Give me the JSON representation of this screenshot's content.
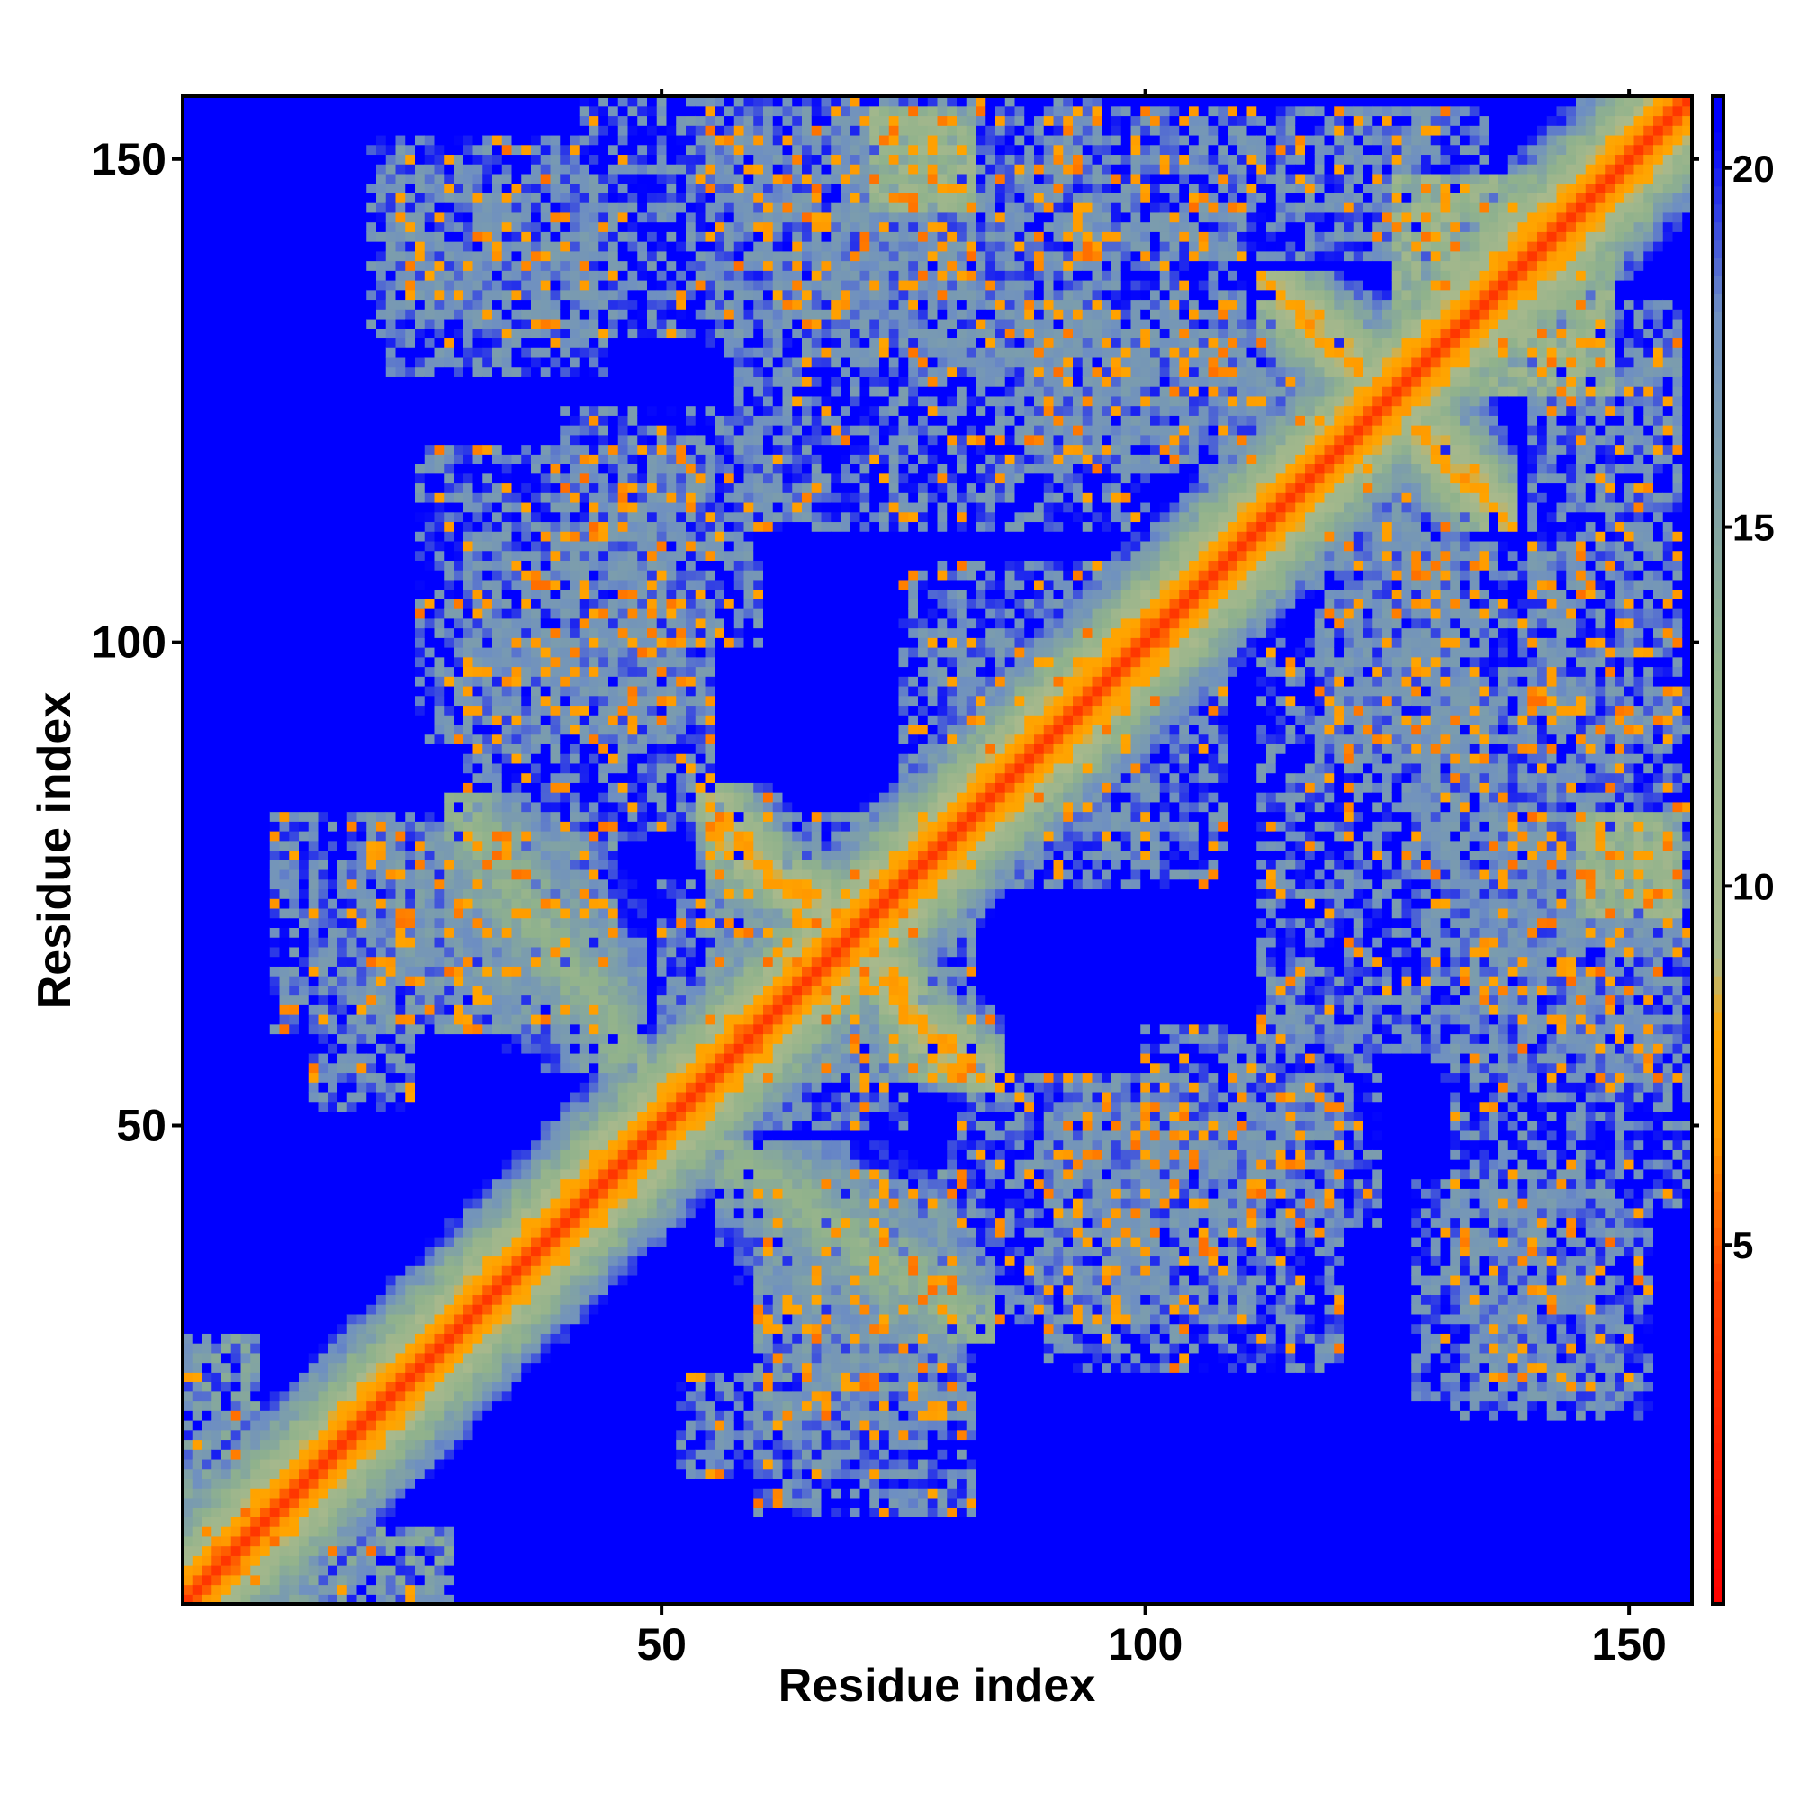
{
  "chart_data": {
    "type": "heatmap",
    "title": "",
    "xlabel": "Residue index",
    "ylabel": "Residue index",
    "xlim": [
      1,
      156
    ],
    "ylim": [
      1,
      156
    ],
    "xticks": [
      50,
      100,
      150
    ],
    "yticks": [
      50,
      100,
      150
    ],
    "symmetric": true,
    "diagonal_value": 3.8,
    "colorbar": {
      "range": [
        0,
        21
      ],
      "ticks": [
        5,
        10,
        15,
        20
      ],
      "stops": [
        {
          "value": 0,
          "color": "#ff0000"
        },
        {
          "value": 4.5,
          "color": "#ff4000"
        },
        {
          "value": 6.5,
          "color": "#ff9900"
        },
        {
          "value": 8.0,
          "color": "#ffa500"
        },
        {
          "value": 9.0,
          "color": "#a9b98c"
        },
        {
          "value": 13.0,
          "color": "#90b28c"
        },
        {
          "value": 18.0,
          "color": "#6e8fc2"
        },
        {
          "value": 20.5,
          "color": "#0000ff"
        },
        {
          "value": 21,
          "color": "#0000ff"
        }
      ]
    },
    "background_value": 21,
    "diagonal_band_width": 12,
    "contact_segments": [
      {
        "a": [
          1,
          8
        ],
        "b": [
          1,
          28
        ],
        "dist": 10
      },
      {
        "a": [
          28,
          48
        ],
        "b": [
          56,
          84
        ],
        "dist": 11,
        "dir": "anti"
      },
      {
        "a": [
          55,
          68
        ],
        "b": [
          72,
          80
        ],
        "dist": 6,
        "dir": "anti"
      },
      {
        "a": [
          20,
          45
        ],
        "b": [
          60,
          80
        ],
        "dist": 11
      },
      {
        "a": [
          50,
          72
        ],
        "b": [
          62,
          75
        ],
        "dist": 12
      },
      {
        "a": [
          55,
          82
        ],
        "b": [
          55,
          72
        ],
        "dist": 11
      },
      {
        "a": [
          75,
          85
        ],
        "b": [
          54,
          62
        ],
        "dist": 6,
        "dir": "anti"
      },
      {
        "a": [
          72,
          84
        ],
        "b": [
          56,
          64
        ],
        "dist": 11
      },
      {
        "a": [
          52,
          78
        ],
        "b": [
          14,
          24
        ],
        "dist": 12
      },
      {
        "a": [
          60,
          82
        ],
        "b": [
          20,
          36
        ],
        "dist": 12
      },
      {
        "a": [
          92,
          112
        ],
        "b": [
          30,
          52
        ],
        "dist": 12
      },
      {
        "a": [
          128,
          148
        ],
        "b": [
          22,
          45
        ],
        "dist": 12
      },
      {
        "a": [
          100,
          124
        ],
        "b": [
          40,
          60
        ],
        "dist": 12
      },
      {
        "a": [
          130,
          155
        ],
        "b": [
          55,
          82
        ],
        "dist": 12
      },
      {
        "a": [
          145,
          155
        ],
        "b": [
          72,
          80
        ],
        "dist": 6
      },
      {
        "a": [
          128,
          150
        ],
        "b": [
          80,
          110
        ],
        "dist": 12
      },
      {
        "a": [
          118,
          132
        ],
        "b": [
          88,
          112
        ],
        "dist": 12
      },
      {
        "a": [
          128,
          138
        ],
        "b": [
          112,
          122
        ],
        "dist": 6,
        "dir": "anti"
      },
      {
        "a": [
          114,
          125
        ],
        "b": [
          126,
          136
        ],
        "dist": 6,
        "dir": "anti"
      },
      {
        "a": [
          132,
          148
        ],
        "b": [
          126,
          140
        ],
        "dist": 6
      },
      {
        "a": [
          140,
          155
        ],
        "b": [
          118,
          135
        ],
        "dist": 12
      },
      {
        "a": [
          73,
          82
        ],
        "b": [
          145,
          155
        ],
        "dist": 6
      },
      {
        "a": [
          68,
          95
        ],
        "b": [
          130,
          156
        ],
        "dist": 12
      },
      {
        "a": [
          92,
          130
        ],
        "b": [
          140,
          155
        ],
        "dist": 12
      },
      {
        "a": [
          88,
          118
        ],
        "b": [
          120,
          135
        ],
        "dist": 12
      },
      {
        "a": [
          20,
          42
        ],
        "b": [
          132,
          152
        ],
        "dist": 12
      },
      {
        "a": [
          42,
          78
        ],
        "b": [
          132,
          156
        ],
        "dist": 12
      },
      {
        "a": [
          25,
          55
        ],
        "b": [
          90,
          120
        ],
        "dist": 12
      },
      {
        "a": [
          10,
          45
        ],
        "b": [
          60,
          82
        ],
        "dist": 12
      },
      {
        "a": [
          75,
          100
        ],
        "b": [
          80,
          108
        ],
        "dist": 12
      },
      {
        "a": [
          80,
          100
        ],
        "b": [
          30,
          55
        ],
        "dist": 12
      },
      {
        "a": [
          112,
          130
        ],
        "b": [
          58,
          100
        ],
        "dist": 12
      }
    ]
  }
}
